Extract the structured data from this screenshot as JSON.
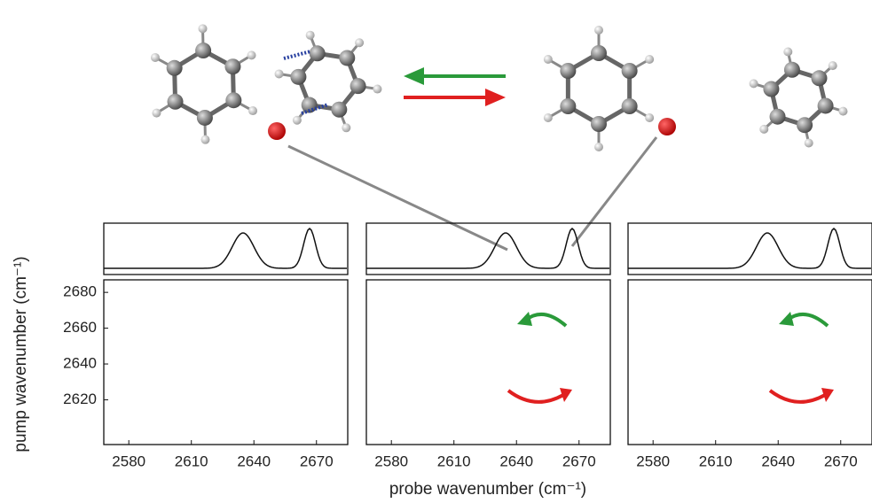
{
  "x_label": "probe wavenumber (cm⁻¹)",
  "y_label": "pump wavenumber (cm⁻¹)",
  "chart_data": [
    {
      "type": "contour",
      "xlim": [
        2568,
        2685
      ],
      "xticks": [
        2580,
        2610,
        2640,
        2670
      ],
      "ylim": [
        2595,
        2687
      ],
      "yticks": [
        2620,
        2640,
        2660,
        2680
      ]
    },
    {
      "type": "contour",
      "xlim": [
        2568,
        2685
      ],
      "xticks": [
        2580,
        2610,
        2640,
        2670
      ],
      "ylim": [
        2595,
        2687
      ]
    },
    {
      "type": "contour",
      "xlim": [
        2568,
        2685
      ],
      "xticks": [
        2580,
        2610,
        2640,
        2670
      ],
      "ylim": [
        2595,
        2687
      ]
    }
  ]
}
